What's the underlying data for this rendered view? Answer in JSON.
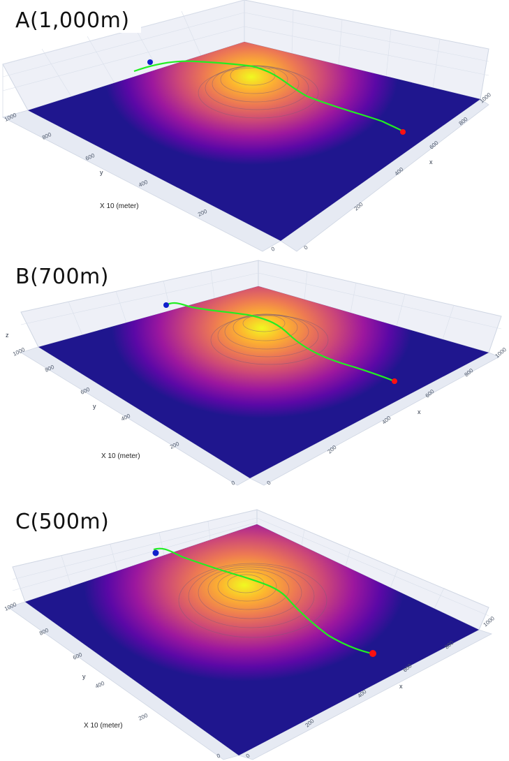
{
  "chart_data": [
    {
      "type": "surface3d",
      "title": "A(1,000m)",
      "note": "X 10 (meter)",
      "axes": {
        "x": {
          "label": "x",
          "ticks": [
            0,
            200,
            400,
            600,
            800,
            1000
          ],
          "range": [
            0,
            1000
          ]
        },
        "y": {
          "label": "y",
          "ticks": [
            0,
            200,
            400,
            600,
            800,
            1000
          ],
          "range": [
            0,
            1000
          ]
        },
        "z": {
          "label": ""
        }
      },
      "colorscale": [
        "#1a168c",
        "#6a00a8",
        "#b12a90",
        "#e16462",
        "#fca636",
        "#f0f921"
      ],
      "path": {
        "start_color": "#1020cc",
        "end_color": "#ff1010",
        "line_color": "#22ee22"
      }
    },
    {
      "type": "surface3d",
      "title": "B(700m)",
      "note": "X 10 (meter)",
      "axes": {
        "x": {
          "label": "x",
          "ticks": [
            0,
            200,
            400,
            600,
            800,
            1000
          ],
          "range": [
            0,
            1000
          ]
        },
        "y": {
          "label": "y",
          "ticks": [
            0,
            200,
            400,
            600,
            800,
            1000
          ],
          "range": [
            0,
            1000
          ]
        },
        "z": {
          "label": "z"
        }
      },
      "colorscale": [
        "#1a168c",
        "#6a00a8",
        "#b12a90",
        "#e16462",
        "#fca636",
        "#f0f921"
      ],
      "path": {
        "start_color": "#1020cc",
        "end_color": "#ff1010",
        "line_color": "#22ee22"
      }
    },
    {
      "type": "surface3d",
      "title": "C(500m)",
      "note": "X 10 (meter)",
      "axes": {
        "x": {
          "label": "x",
          "ticks": [
            0,
            200,
            400,
            600,
            800,
            1000
          ],
          "range": [
            0,
            1000
          ]
        },
        "y": {
          "label": "y",
          "ticks": [
            0,
            200,
            400,
            600,
            800,
            1000
          ],
          "range": [
            0,
            1000
          ]
        },
        "z": {
          "label": ""
        }
      },
      "colorscale": [
        "#1a168c",
        "#6a00a8",
        "#b12a90",
        "#e16462",
        "#fca636",
        "#f0f921"
      ],
      "path": {
        "start_color": "#1020cc",
        "end_color": "#ff1010",
        "line_color": "#22ee22"
      }
    }
  ]
}
